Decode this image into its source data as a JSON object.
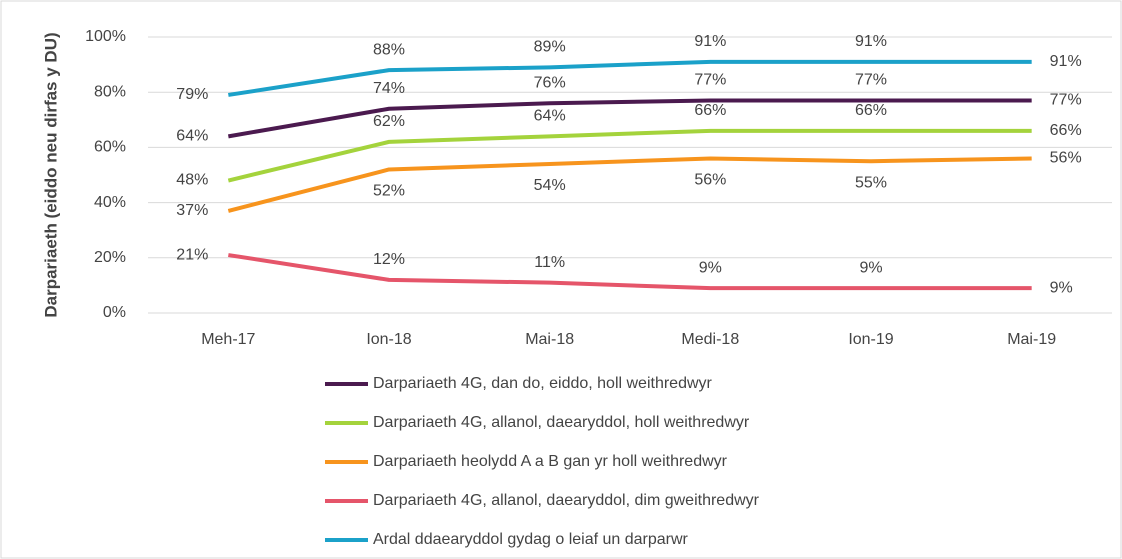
{
  "chart_data": {
    "type": "line",
    "y_label": "Darpariaeth (eiddo neu dirfas y DU)",
    "categories": [
      "Meh-17",
      "Ion-18",
      "Mai-18",
      "Medi-18",
      "Ion-19",
      "Mai-19"
    ],
    "ylim": [
      0,
      100
    ],
    "yticks": [
      {
        "value": 0,
        "label": "0%"
      },
      {
        "value": 20,
        "label": "20%"
      },
      {
        "value": 40,
        "label": "40%"
      },
      {
        "value": 60,
        "label": "60%"
      },
      {
        "value": 80,
        "label": "80%"
      },
      {
        "value": 100,
        "label": "100%"
      }
    ],
    "grid": true,
    "legend": "bottom",
    "series": [
      {
        "name": "Darpariaeth 4G, dan do, eiddo, holl weithredwyr",
        "color": "#4b1a4f",
        "values": [
          64,
          74,
          76,
          77,
          77,
          77
        ],
        "value_labels": [
          "64%",
          "74%",
          "76%",
          "77%",
          "77%",
          "77%"
        ]
      },
      {
        "name": "Darpariaeth 4G, allanol, daearyddol, holl weithredwyr",
        "color": "#a4d33c",
        "values": [
          48,
          62,
          64,
          66,
          66,
          66
        ],
        "value_labels": [
          "48%",
          "62%",
          "64%",
          "66%",
          "66%",
          "66%"
        ]
      },
      {
        "name": "Darpariaeth heolydd A a B gan yr holl weithredwyr",
        "color": "#f7941d",
        "values": [
          37,
          52,
          54,
          56,
          55,
          56
        ],
        "value_labels": [
          "37%",
          "52%",
          "54%",
          "56%",
          "55%",
          "56%"
        ]
      },
      {
        "name": "Darpariaeth 4G, allanol, daearyddol, dim gweithredwyr",
        "color": "#e5556a",
        "values": [
          21,
          12,
          11,
          9,
          9,
          9
        ],
        "value_labels": [
          "21%",
          "12%",
          "11%",
          "9%",
          "9%",
          "9%"
        ]
      },
      {
        "name": "Ardal ddaearyddol gydag o leiaf un darparwr",
        "color": "#1ba1c9",
        "values": [
          79,
          88,
          89,
          91,
          91,
          91
        ],
        "value_labels": [
          "79%",
          "88%",
          "89%",
          "91%",
          "91%",
          "91%"
        ]
      }
    ]
  }
}
